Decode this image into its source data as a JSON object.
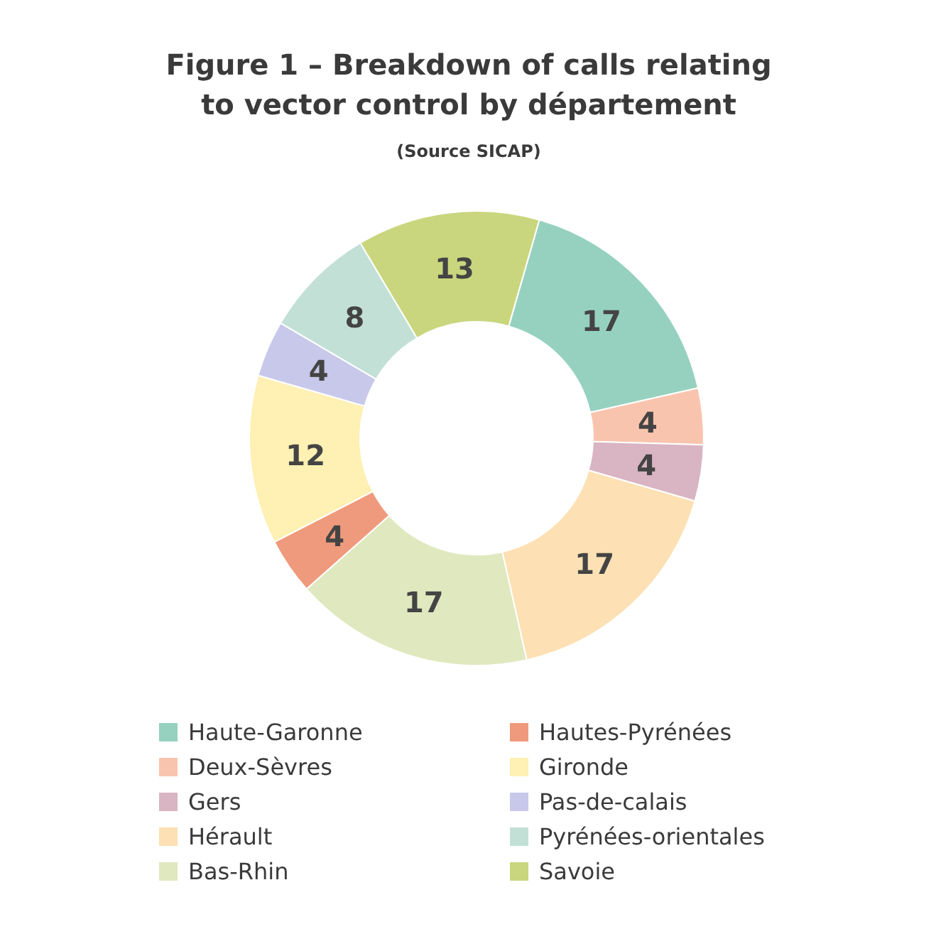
{
  "chart_data": {
    "type": "donut",
    "title": "Figure 1 – Breakdown of calls relating\nto vector control by département",
    "subtitle": "(Source SICAP)",
    "categories": [
      "Haute-Garonne",
      "Deux-Sèvres",
      "Gers",
      "Hérault",
      "Bas-Rhin",
      "Hautes-Pyrénées",
      "Gironde",
      "Pas-de-calais",
      "Pyrénées-orientales",
      "Savoie"
    ],
    "values": [
      17,
      4,
      4,
      17,
      17,
      4,
      12,
      4,
      8,
      13
    ],
    "colors": [
      "#96d1bf",
      "#f9c4ad",
      "#d9b4c2",
      "#fde0b3",
      "#e0e8bf",
      "#ef9a7c",
      "#fff0b3",
      "#c8c8ea",
      "#c2e0d6",
      "#c9d67d"
    ],
    "data_labels": true,
    "legend": "bottom"
  }
}
